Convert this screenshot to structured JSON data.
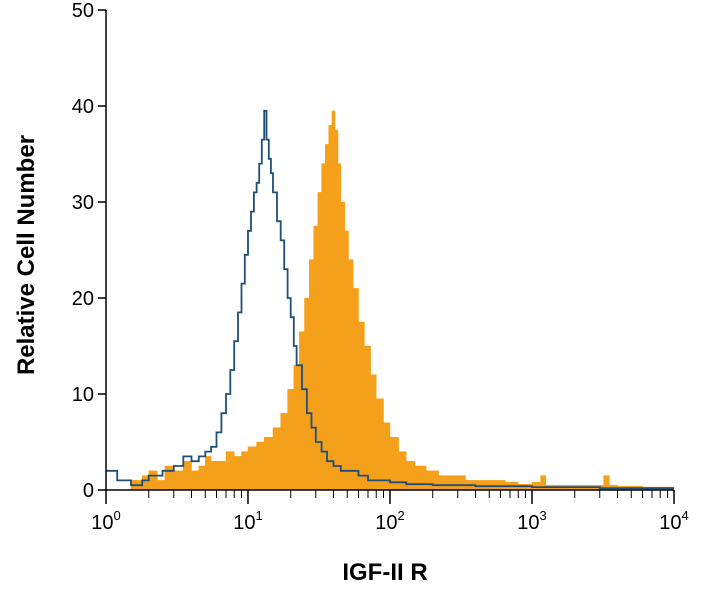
{
  "chart_data": {
    "type": "area",
    "title": "",
    "xlabel": "IGF-II R",
    "ylabel": "Relative Cell Number",
    "xscale": "log",
    "xlim": [
      1,
      10000
    ],
    "ylim": [
      0,
      50
    ],
    "grid": false,
    "legend": "none",
    "x_ticks": [
      {
        "base": "10",
        "exp": "0"
      },
      {
        "base": "10",
        "exp": "1"
      },
      {
        "base": "10",
        "exp": "2"
      },
      {
        "base": "10",
        "exp": "3"
      },
      {
        "base": "10",
        "exp": "4"
      }
    ],
    "y_ticks": [
      "0",
      "10",
      "20",
      "30",
      "40",
      "50"
    ],
    "series": [
      {
        "style": "filled",
        "color": "#f5a01a",
        "x": [
          1.5,
          1.8,
          2.0,
          2.3,
          2.6,
          3.0,
          3.5,
          4.0,
          4.5,
          5.0,
          5.5,
          6.0,
          7.0,
          8.0,
          9.0,
          10.0,
          11.5,
          13.0,
          15.0,
          17.0,
          19.0,
          21.0,
          23.0,
          25.0,
          27.0,
          29.0,
          31.0,
          33.0,
          35.0,
          37.0,
          39.0,
          41.0,
          43.0,
          45.0,
          48.0,
          51.0,
          55.0,
          60.0,
          66.0,
          73.0,
          80.0,
          90.0,
          100.0,
          115.0,
          130.0,
          150.0,
          180.0,
          220.0,
          270.0,
          340.0,
          420.0,
          520.0,
          650.0,
          800.0,
          1000.0,
          1150.0,
          1250.0,
          1500.0,
          2000.0,
          2700.0,
          3200.0,
          3500.0,
          4000.0,
          6000.0,
          10000.0
        ],
        "y": [
          1.0,
          1.5,
          2.0,
          1.0,
          2.5,
          2.0,
          3.0,
          2.0,
          2.5,
          3.5,
          3.0,
          3.0,
          4.0,
          3.5,
          4.0,
          4.5,
          5.0,
          5.5,
          6.5,
          8.0,
          10.5,
          13.0,
          16.5,
          20.0,
          24.0,
          27.5,
          31.0,
          34.0,
          36.0,
          38.0,
          39.5,
          37.5,
          34.0,
          30.0,
          27.0,
          24.0,
          21.0,
          17.5,
          15.0,
          12.0,
          9.5,
          7.0,
          5.5,
          4.0,
          3.0,
          2.5,
          2.0,
          1.5,
          1.5,
          1.0,
          1.0,
          1.0,
          0.8,
          0.6,
          0.8,
          1.5,
          0.5,
          0.5,
          0.5,
          0.5,
          1.5,
          0.5,
          0.4,
          0.3,
          0.2
        ]
      },
      {
        "style": "outline",
        "color": "#1f4e79",
        "x": [
          1.0,
          1.2,
          1.5,
          1.8,
          2.0,
          2.5,
          3.0,
          3.5,
          4.0,
          4.5,
          5.0,
          5.5,
          6.0,
          6.5,
          7.0,
          7.5,
          8.0,
          8.5,
          9.0,
          9.5,
          10.0,
          10.5,
          11.0,
          11.5,
          12.0,
          12.5,
          13.0,
          13.5,
          14.0,
          14.5,
          15.0,
          16.0,
          17.0,
          18.0,
          19.0,
          20.0,
          21.0,
          22.0,
          24.0,
          26.0,
          28.0,
          30.0,
          33.0,
          36.0,
          40.0,
          45.0,
          50.0,
          60.0,
          70.0,
          85.0,
          100.0,
          130.0,
          200.0,
          400.0,
          1000.0,
          3000.0,
          10000.0
        ],
        "y": [
          2.0,
          1.0,
          0.5,
          1.0,
          1.5,
          2.0,
          2.5,
          3.5,
          3.0,
          3.5,
          4.0,
          4.5,
          6.0,
          8.0,
          10.0,
          12.5,
          15.5,
          18.5,
          21.5,
          24.5,
          27.0,
          29.0,
          31.0,
          32.0,
          34.0,
          36.5,
          39.5,
          36.5,
          34.5,
          33.0,
          31.0,
          28.0,
          26.0,
          23.0,
          20.0,
          18.0,
          15.0,
          13.0,
          10.5,
          8.0,
          6.5,
          5.0,
          4.0,
          3.0,
          2.5,
          2.0,
          2.0,
          1.5,
          1.0,
          1.0,
          0.8,
          0.6,
          0.5,
          0.4,
          0.3,
          0.2,
          0.2
        ]
      }
    ]
  }
}
